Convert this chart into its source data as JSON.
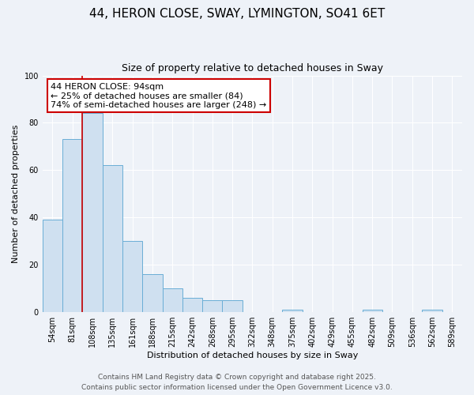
{
  "title": "44, HERON CLOSE, SWAY, LYMINGTON, SO41 6ET",
  "subtitle": "Size of property relative to detached houses in Sway",
  "xlabel": "Distribution of detached houses by size in Sway",
  "ylabel": "Number of detached properties",
  "categories": [
    "54sqm",
    "81sqm",
    "108sqm",
    "135sqm",
    "161sqm",
    "188sqm",
    "215sqm",
    "242sqm",
    "268sqm",
    "295sqm",
    "322sqm",
    "348sqm",
    "375sqm",
    "402sqm",
    "429sqm",
    "455sqm",
    "482sqm",
    "509sqm",
    "536sqm",
    "562sqm",
    "589sqm"
  ],
  "values": [
    39,
    73,
    84,
    62,
    30,
    16,
    10,
    6,
    5,
    5,
    0,
    0,
    1,
    0,
    0,
    0,
    1,
    0,
    0,
    1,
    0
  ],
  "bar_color": "#cfe0f0",
  "bar_edge_color": "#6aaed6",
  "red_line_index": 1,
  "ylim": [
    0,
    100
  ],
  "yticks": [
    0,
    20,
    40,
    60,
    80,
    100
  ],
  "annotation_line1": "44 HERON CLOSE: 94sqm",
  "annotation_line2": "← 25% of detached houses are smaller (84)",
  "annotation_line3": "74% of semi-detached houses are larger (248) →",
  "annotation_box_facecolor": "#ffffff",
  "annotation_box_edgecolor": "#cc0000",
  "footer_line1": "Contains HM Land Registry data © Crown copyright and database right 2025.",
  "footer_line2": "Contains public sector information licensed under the Open Government Licence v3.0.",
  "background_color": "#eef2f8",
  "grid_color": "#ffffff",
  "title_fontsize": 11,
  "subtitle_fontsize": 9,
  "ylabel_fontsize": 8,
  "xlabel_fontsize": 8,
  "tick_fontsize": 7,
  "footer_fontsize": 6.5,
  "annotation_fontsize": 8
}
